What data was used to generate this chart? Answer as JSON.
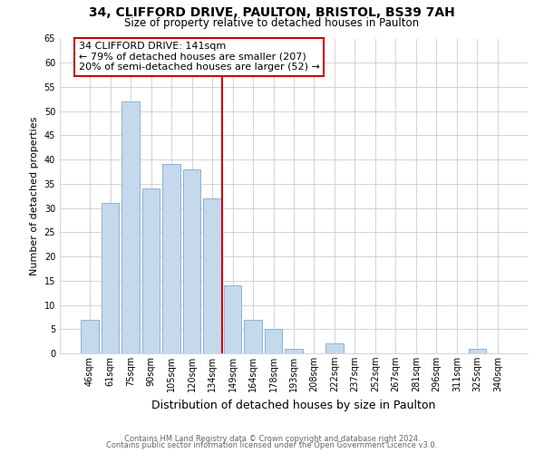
{
  "title": "34, CLIFFORD DRIVE, PAULTON, BRISTOL, BS39 7AH",
  "subtitle": "Size of property relative to detached houses in Paulton",
  "xlabel": "Distribution of detached houses by size in Paulton",
  "ylabel": "Number of detached properties",
  "bin_labels": [
    "46sqm",
    "61sqm",
    "75sqm",
    "90sqm",
    "105sqm",
    "120sqm",
    "134sqm",
    "149sqm",
    "164sqm",
    "178sqm",
    "193sqm",
    "208sqm",
    "222sqm",
    "237sqm",
    "252sqm",
    "267sqm",
    "281sqm",
    "296sqm",
    "311sqm",
    "325sqm",
    "340sqm"
  ],
  "bar_heights": [
    7,
    31,
    52,
    34,
    39,
    38,
    32,
    14,
    7,
    5,
    1,
    0,
    2,
    0,
    0,
    0,
    0,
    0,
    0,
    1,
    0
  ],
  "bar_color": "#c5d8ec",
  "bar_edge_color": "#8ab4d4",
  "vline_x": 6.5,
  "vline_color": "#cc0000",
  "ylim": [
    0,
    65
  ],
  "yticks": [
    0,
    5,
    10,
    15,
    20,
    25,
    30,
    35,
    40,
    45,
    50,
    55,
    60,
    65
  ],
  "annotation_title": "34 CLIFFORD DRIVE: 141sqm",
  "annotation_line1": "← 79% of detached houses are smaller (207)",
  "annotation_line2": "20% of semi-detached houses are larger (52) →",
  "annotation_box_color": "#ffffff",
  "annotation_box_edge": "#cc0000",
  "footer_line1": "Contains HM Land Registry data © Crown copyright and database right 2024.",
  "footer_line2": "Contains public sector information licensed under the Open Government Licence v3.0.",
  "bg_color": "#ffffff",
  "plot_bg_color": "#ffffff",
  "grid_color": "#cccccc",
  "title_fontsize": 10,
  "subtitle_fontsize": 8.5,
  "ylabel_fontsize": 8,
  "xlabel_fontsize": 9,
  "tick_fontsize": 7,
  "annot_fontsize": 8,
  "footer_fontsize": 6
}
